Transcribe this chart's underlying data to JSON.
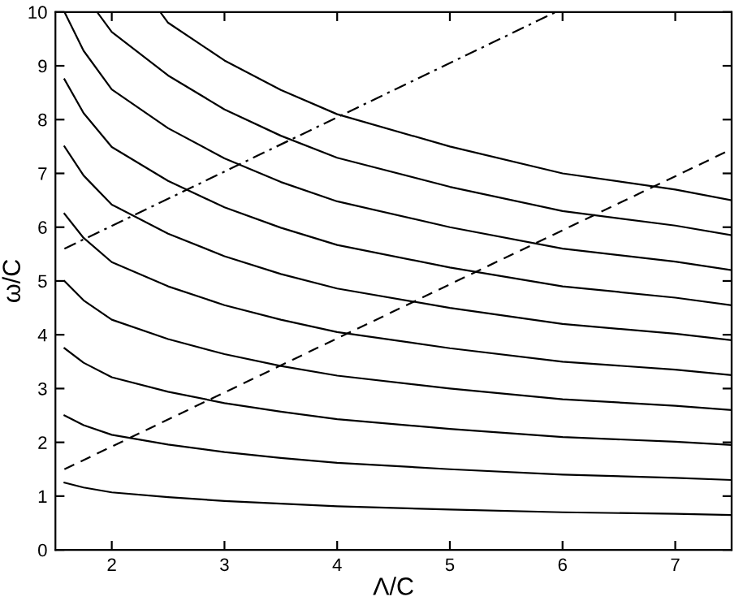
{
  "chart_data": {
    "type": "line",
    "xlabel": "Λ/C",
    "ylabel": "ω/C",
    "xlim": [
      1.5,
      7.5
    ],
    "ylim": [
      0,
      10
    ],
    "xticks": [
      2,
      3,
      4,
      5,
      6,
      7
    ],
    "yticks": [
      0,
      1,
      2,
      3,
      4,
      5,
      6,
      7,
      8,
      9,
      10
    ],
    "grid": false,
    "legend": false,
    "marker": "none",
    "series": [
      {
        "color": "#000000",
        "line_style": "solid",
        "x": [
          1.58,
          1.75,
          2,
          2.5,
          3,
          3.5,
          4,
          5,
          6,
          7,
          7.5
        ],
        "values": [
          1.25,
          1.16,
          1.07,
          0.98,
          0.91,
          0.86,
          0.81,
          0.75,
          0.7,
          0.67,
          0.65
        ]
      },
      {
        "color": "#000000",
        "line_style": "solid",
        "x": [
          1.58,
          1.75,
          2,
          2.5,
          3,
          3.5,
          4,
          5,
          6,
          7,
          7.5
        ],
        "values": [
          2.5,
          2.32,
          2.14,
          1.96,
          1.82,
          1.71,
          1.62,
          1.5,
          1.4,
          1.34,
          1.3
        ]
      },
      {
        "color": "#000000",
        "line_style": "solid",
        "x": [
          1.58,
          1.75,
          2,
          2.5,
          3,
          3.5,
          4,
          5,
          6,
          7,
          7.5
        ],
        "values": [
          3.75,
          3.48,
          3.21,
          2.94,
          2.73,
          2.57,
          2.43,
          2.25,
          2.1,
          2.01,
          1.95
        ]
      },
      {
        "color": "#000000",
        "line_style": "solid",
        "x": [
          1.58,
          1.75,
          2,
          2.5,
          3,
          3.5,
          4,
          5,
          6,
          7,
          7.5
        ],
        "values": [
          5,
          4.64,
          4.28,
          3.92,
          3.64,
          3.42,
          3.24,
          3,
          2.8,
          2.68,
          2.6
        ]
      },
      {
        "color": "#000000",
        "line_style": "solid",
        "x": [
          1.58,
          1.75,
          2,
          2.5,
          3,
          3.5,
          4,
          5,
          6,
          7,
          7.5
        ],
        "values": [
          6.25,
          5.8,
          5.35,
          4.9,
          4.55,
          4.28,
          4.05,
          3.75,
          3.5,
          3.35,
          3.25
        ]
      },
      {
        "color": "#000000",
        "line_style": "solid",
        "x": [
          1.58,
          1.75,
          2,
          2.5,
          3,
          3.5,
          4,
          5,
          6,
          7,
          7.5
        ],
        "values": [
          7.5,
          6.96,
          6.42,
          5.88,
          5.46,
          5.13,
          4.86,
          4.5,
          4.2,
          4.02,
          3.9
        ]
      },
      {
        "color": "#000000",
        "line_style": "solid",
        "x": [
          1.58,
          1.75,
          2,
          2.5,
          3,
          3.5,
          4,
          5,
          6,
          7,
          7.5
        ],
        "values": [
          8.75,
          8.12,
          7.49,
          6.86,
          6.37,
          5.99,
          5.67,
          5.25,
          4.9,
          4.69,
          4.55
        ]
      },
      {
        "color": "#000000",
        "line_style": "solid",
        "x": [
          1.58,
          1.75,
          2,
          2.5,
          3,
          3.5,
          4,
          5,
          6,
          7,
          7.5
        ],
        "values": [
          10,
          9.28,
          8.56,
          7.84,
          7.28,
          6.84,
          6.48,
          6,
          5.6,
          5.36,
          5.2
        ]
      },
      {
        "color": "#000000",
        "line_style": "solid",
        "x": [
          1.87,
          2,
          2.5,
          3,
          3.5,
          4,
          5,
          6,
          7,
          7.5
        ],
        "values": [
          10,
          9.63,
          8.82,
          8.19,
          7.7,
          7.29,
          6.75,
          6.3,
          6.03,
          5.85
        ]
      },
      {
        "color": "#000000",
        "line_style": "solid",
        "x": [
          2.43,
          2.5,
          3,
          3.5,
          4,
          5,
          6,
          7,
          7.5
        ],
        "values": [
          10,
          9.8,
          9.1,
          8.55,
          8.1,
          7.5,
          7.0,
          6.7,
          6.5
        ]
      },
      {
        "color": "#000000",
        "line_style": "dashdot",
        "x": [
          1.58,
          5.94
        ],
        "values": [
          5.6,
          10
        ]
      },
      {
        "color": "#000000",
        "line_style": "dashed",
        "x": [
          1.58,
          7.5
        ],
        "values": [
          1.5,
          7.45
        ]
      }
    ]
  }
}
